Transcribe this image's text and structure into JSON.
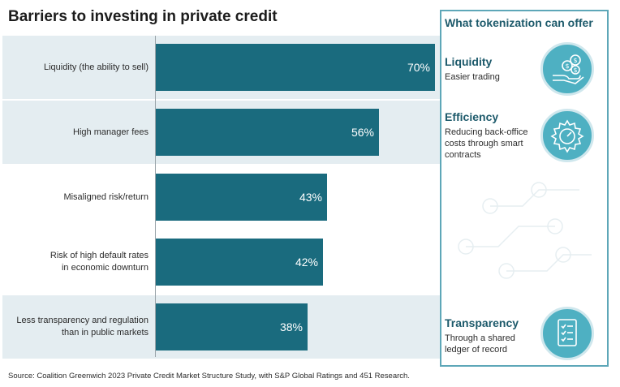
{
  "title": "Barriers to investing in private credit",
  "chart_data": {
    "type": "bar",
    "orientation": "horizontal",
    "categories": [
      "Liquidity (the ability to sell)",
      "High manager fees",
      "Misaligned risk/return",
      "Risk of high default rates in economic downturn",
      "Less transparency and regulation than in public markets"
    ],
    "category_lines": [
      [
        "Liquidity (the ability to sell)"
      ],
      [
        "High manager fees"
      ],
      [
        "Misaligned risk/return"
      ],
      [
        "Risk of high default rates",
        "in economic downturn"
      ],
      [
        "Less transparency and regulation",
        "than in public markets"
      ]
    ],
    "values": [
      70,
      56,
      43,
      42,
      38
    ],
    "value_labels": [
      "70%",
      "56%",
      "43%",
      "42%",
      "38%"
    ],
    "highlighted": [
      true,
      true,
      false,
      false,
      true
    ],
    "xlim": [
      0,
      70
    ],
    "bar_color": "#1a6b7e",
    "band_color": "#e4edf1"
  },
  "panel": {
    "title": "What tokenization can offer",
    "border_color": "#5ea7b8",
    "items": [
      {
        "title": "Liquidity",
        "desc": "Easier trading",
        "icon": "hand-coins-icon"
      },
      {
        "title": "Efficiency",
        "desc": "Reducing back-office costs through smart contracts",
        "icon": "gear-icon"
      },
      {
        "title": "Transparency",
        "desc": "Through a shared ledger of record",
        "icon": "checklist-icon"
      }
    ]
  },
  "source": "Source: Coalition Greenwich 2023 Private Credit Market Structure Study, with S&P Global Ratings and 451 Research."
}
